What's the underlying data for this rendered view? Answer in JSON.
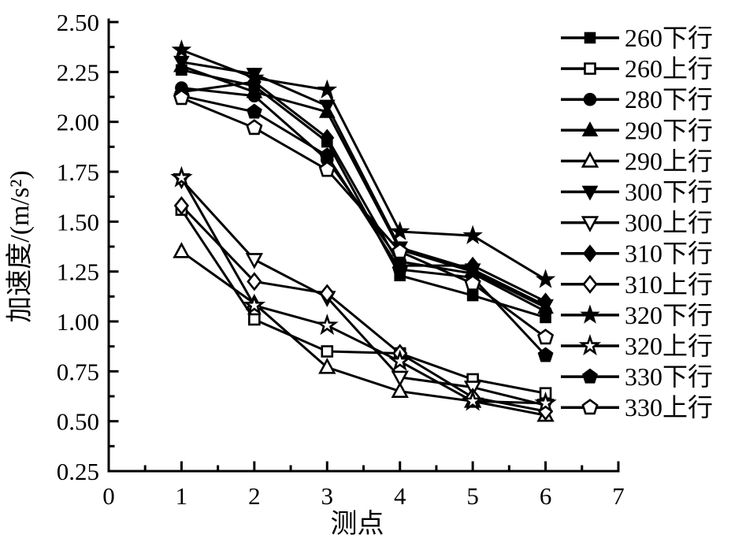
{
  "figure": {
    "background": "#ffffff",
    "foreground": "#000000"
  },
  "chart_data": {
    "type": "line",
    "title": "",
    "xlabel": "测点",
    "ylabel": "加速度/(m/s²)",
    "xlim": [
      0,
      7
    ],
    "ylim": [
      0.25,
      2.5
    ],
    "xticks": [
      "0",
      "1",
      "2",
      "3",
      "4",
      "5",
      "6",
      "7"
    ],
    "yticks": [
      "0.25",
      "0.50",
      "0.75",
      "1.00",
      "1.25",
      "1.50",
      "1.75",
      "2.00",
      "2.25",
      "2.50"
    ],
    "x_minor_step": 0.5,
    "y_minor_step": 0.125,
    "grid": false,
    "legend_position": "right",
    "x": [
      1,
      2,
      3,
      4,
      5,
      6
    ],
    "series": [
      {
        "name": "260下行",
        "slug": "260-down",
        "marker": "square",
        "variant": "filled",
        "values": [
          2.26,
          2.18,
          1.9,
          1.23,
          1.13,
          1.02
        ]
      },
      {
        "name": "260上行",
        "slug": "260-up",
        "marker": "square",
        "variant": "open",
        "values": [
          1.56,
          1.01,
          0.85,
          0.84,
          0.71,
          0.64
        ]
      },
      {
        "name": "280下行",
        "slug": "280-down",
        "marker": "circle",
        "variant": "filled",
        "values": [
          2.17,
          2.13,
          1.81,
          1.3,
          1.24,
          1.05
        ]
      },
      {
        "name": "290下行",
        "slug": "290-down",
        "marker": "triangle-up",
        "variant": "filled",
        "values": [
          2.28,
          2.15,
          2.05,
          1.36,
          1.25,
          1.07
        ]
      },
      {
        "name": "290上行",
        "slug": "290-up",
        "marker": "triangle-up",
        "variant": "open",
        "values": [
          1.35,
          1.09,
          0.77,
          0.65,
          0.6,
          0.53
        ]
      },
      {
        "name": "300下行",
        "slug": "300-down",
        "marker": "triangle-down",
        "variant": "filled",
        "values": [
          2.3,
          2.24,
          2.08,
          1.37,
          1.26,
          1.08
        ]
      },
      {
        "name": "300上行",
        "slug": "300-up",
        "marker": "triangle-down",
        "variant": "open",
        "values": [
          1.71,
          1.31,
          1.12,
          0.72,
          0.67,
          0.58
        ]
      },
      {
        "name": "310下行",
        "slug": "310-down",
        "marker": "diamond",
        "variant": "filled",
        "values": [
          2.15,
          2.2,
          1.92,
          1.28,
          1.28,
          1.1
        ]
      },
      {
        "name": "310上行",
        "slug": "310-up",
        "marker": "diamond",
        "variant": "open",
        "values": [
          1.58,
          1.2,
          1.14,
          0.84,
          0.62,
          0.55
        ]
      },
      {
        "name": "320下行",
        "slug": "320-down",
        "marker": "star",
        "variant": "filled",
        "values": [
          2.36,
          2.22,
          2.16,
          1.45,
          1.43,
          1.21
        ]
      },
      {
        "name": "320上行",
        "slug": "320-up",
        "marker": "star",
        "variant": "open",
        "values": [
          1.72,
          1.08,
          0.98,
          0.8,
          0.6,
          0.59
        ]
      },
      {
        "name": "330下行",
        "slug": "330-down",
        "marker": "pentagon",
        "variant": "filled",
        "values": [
          2.13,
          2.05,
          1.83,
          1.26,
          1.22,
          0.83
        ]
      },
      {
        "name": "330上行",
        "slug": "330-up",
        "marker": "pentagon",
        "variant": "open",
        "values": [
          2.12,
          1.97,
          1.76,
          1.35,
          1.19,
          0.92
        ]
      }
    ]
  }
}
